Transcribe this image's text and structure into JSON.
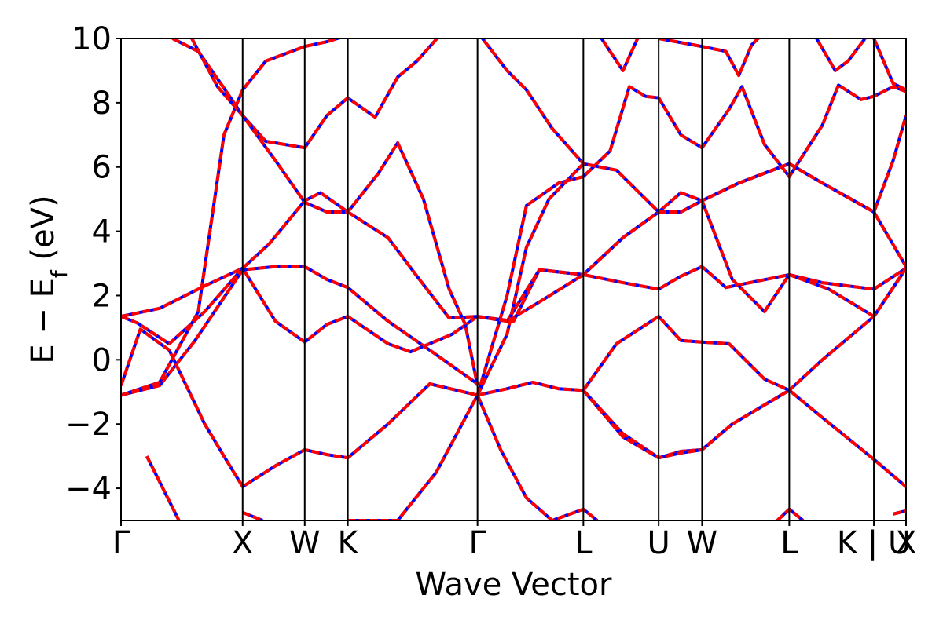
{
  "chart_data": {
    "type": "line",
    "xlabel": "Wave Vector",
    "ylabel": "E − E_f (eV)",
    "ylabel_main": "E − E",
    "ylabel_sub": "f",
    "ylabel_unit": " (eV)",
    "ylim": [
      -5,
      10
    ],
    "xlim": [
      0,
      24.4
    ],
    "y_ticks": [
      {
        "value": -4,
        "label": "−4"
      },
      {
        "value": -2,
        "label": "−2"
      },
      {
        "value": 0,
        "label": "0"
      },
      {
        "value": 2,
        "label": "2"
      },
      {
        "value": 4,
        "label": "4"
      },
      {
        "value": 6,
        "label": "6"
      },
      {
        "value": 8,
        "label": "8"
      },
      {
        "value": 10,
        "label": "10"
      }
    ],
    "kpoints": [
      {
        "label": "Γ",
        "x": 0.0
      },
      {
        "label": "X",
        "x": 3.78
      },
      {
        "label": "W",
        "x": 5.71
      },
      {
        "label": "K",
        "x": 7.05
      },
      {
        "label": "Γ",
        "x": 11.08
      },
      {
        "label": "L",
        "x": 14.37
      },
      {
        "label": "U",
        "x": 16.71
      },
      {
        "label": "W",
        "x": 18.06
      },
      {
        "label": "L",
        "x": 20.77
      },
      {
        "label": "K | U",
        "x": 23.4
      },
      {
        "label": "X",
        "x": 24.4
      }
    ],
    "series": [
      {
        "color": "#0000ff",
        "style": "solid",
        "bands": [
          [
            [
              0,
              -1.1
            ],
            [
              1.2,
              -0.8
            ],
            [
              2.3,
              0.6
            ],
            [
              3.78,
              2.8
            ],
            [
              4.8,
              2.9
            ],
            [
              5.71,
              2.9
            ],
            [
              6.4,
              2.5
            ],
            [
              7.05,
              2.25
            ],
            [
              8.3,
              1.2
            ],
            [
              9.6,
              0.3
            ],
            [
              11.08,
              -0.75
            ]
          ],
          [
            [
              0,
              -0.8
            ],
            [
              0.6,
              0.95
            ],
            [
              1.5,
              0.3
            ],
            [
              2.6,
              -2.0
            ],
            [
              3.2,
              -3.0
            ],
            [
              3.78,
              -3.95
            ],
            [
              4.8,
              -3.3
            ],
            [
              5.71,
              -2.8
            ],
            [
              6.4,
              -2.95
            ],
            [
              7.05,
              -3.05
            ],
            [
              8.3,
              -2.0
            ],
            [
              9.6,
              -0.75
            ],
            [
              11.08,
              -1.1
            ]
          ],
          [
            [
              0,
              1.35
            ],
            [
              0.5,
              1.15
            ],
            [
              1.5,
              0.5
            ],
            [
              2.6,
              1.5
            ],
            [
              3.78,
              2.85
            ],
            [
              4.8,
              1.2
            ],
            [
              5.71,
              0.55
            ],
            [
              6.4,
              1.1
            ],
            [
              7.05,
              1.35
            ],
            [
              8.3,
              0.5
            ],
            [
              9.0,
              0.25
            ],
            [
              10.3,
              0.8
            ],
            [
              11.08,
              1.35
            ]
          ],
          [
            [
              0,
              1.35
            ],
            [
              1.2,
              1.6
            ],
            [
              2.6,
              2.3
            ],
            [
              3.78,
              2.85
            ],
            [
              4.6,
              3.6
            ],
            [
              5.71,
              4.95
            ],
            [
              6.2,
              5.2
            ],
            [
              7.05,
              4.6
            ],
            [
              8.3,
              3.8
            ],
            [
              9.2,
              2.6
            ],
            [
              10.2,
              1.3
            ],
            [
              11.08,
              1.35
            ]
          ],
          [
            [
              0,
              -1.1
            ],
            [
              1.2,
              -0.7
            ],
            [
              2.4,
              1.5
            ],
            [
              3.2,
              7.0
            ],
            [
              3.78,
              8.4
            ],
            [
              4.5,
              9.3
            ],
            [
              5.71,
              9.75
            ],
            [
              6.4,
              9.9
            ],
            [
              7.05,
              10.1
            ]
          ],
          [
            [
              1.6,
              10.0
            ],
            [
              2.4,
              9.6
            ],
            [
              3.1,
              8.6
            ],
            [
              3.78,
              7.6
            ],
            [
              4.5,
              6.8
            ],
            [
              5.71,
              6.6
            ],
            [
              6.4,
              7.6
            ],
            [
              7.05,
              8.15
            ],
            [
              7.9,
              7.55
            ],
            [
              8.6,
              8.8
            ],
            [
              9.2,
              9.3
            ],
            [
              10.0,
              10.2
            ]
          ],
          [
            [
              2.2,
              10.0
            ],
            [
              3.0,
              8.5
            ],
            [
              3.78,
              7.6
            ],
            [
              4.8,
              6.2
            ],
            [
              5.71,
              4.9
            ],
            [
              6.4,
              4.6
            ],
            [
              7.05,
              4.6
            ],
            [
              8.0,
              5.8
            ],
            [
              8.6,
              6.75
            ],
            [
              9.4,
              5.0
            ],
            [
              10.2,
              2.2
            ],
            [
              10.7,
              1.1
            ],
            [
              11.08,
              -0.8
            ]
          ],
          [
            [
              11.08,
              -1.1
            ],
            [
              12.0,
              -0.9
            ],
            [
              12.8,
              -0.7
            ],
            [
              13.6,
              -0.9
            ],
            [
              14.37,
              -0.95
            ],
            [
              15.6,
              -2.3
            ],
            [
              16.71,
              -3.05
            ],
            [
              17.4,
              -2.85
            ],
            [
              18.06,
              -2.8
            ],
            [
              19.0,
              -2.0
            ],
            [
              20.77,
              -0.95
            ],
            [
              21.8,
              -1.8
            ],
            [
              23.4,
              -3.1
            ],
            [
              24.4,
              -3.95
            ]
          ],
          [
            [
              11.08,
              -1.1
            ],
            [
              11.8,
              -2.8
            ],
            [
              12.6,
              -4.3
            ],
            [
              13.4,
              -5.0
            ],
            [
              14.37,
              -4.65
            ],
            [
              14.8,
              -5.0
            ]
          ],
          [
            [
              11.08,
              -1.1
            ],
            [
              12.0,
              2.0
            ],
            [
              12.6,
              4.8
            ],
            [
              13.6,
              5.5
            ],
            [
              14.37,
              5.7
            ],
            [
              15.2,
              6.5
            ],
            [
              15.8,
              8.5
            ],
            [
              16.3,
              8.2
            ],
            [
              16.71,
              8.15
            ],
            [
              17.4,
              7.0
            ],
            [
              18.06,
              6.6
            ],
            [
              18.9,
              7.8
            ],
            [
              19.3,
              8.5
            ],
            [
              20.0,
              6.7
            ],
            [
              20.77,
              5.7
            ],
            [
              21.8,
              7.3
            ],
            [
              22.3,
              8.55
            ],
            [
              23.0,
              8.1
            ],
            [
              23.4,
              8.2
            ],
            [
              24.0,
              8.5
            ],
            [
              24.4,
              8.35
            ]
          ],
          [
            [
              11.08,
              1.35
            ],
            [
              12.0,
              1.2
            ],
            [
              13.0,
              1.8
            ],
            [
              14.37,
              2.65
            ],
            [
              15.6,
              2.4
            ],
            [
              16.71,
              2.2
            ],
            [
              17.4,
              2.6
            ],
            [
              18.06,
              2.9
            ],
            [
              18.8,
              2.25
            ],
            [
              20.77,
              2.65
            ],
            [
              21.8,
              2.4
            ],
            [
              23.4,
              2.2
            ],
            [
              24.4,
              2.85
            ]
          ],
          [
            [
              11.08,
              1.35
            ],
            [
              12.2,
              1.2
            ],
            [
              13.0,
              2.8
            ],
            [
              14.37,
              2.65
            ],
            [
              15.6,
              3.8
            ],
            [
              16.71,
              4.6
            ],
            [
              17.4,
              5.2
            ],
            [
              18.06,
              4.95
            ],
            [
              19.2,
              5.5
            ],
            [
              20.77,
              6.1
            ],
            [
              21.8,
              5.5
            ],
            [
              23.4,
              4.6
            ],
            [
              24.4,
              2.9
            ]
          ],
          [
            [
              11.08,
              1.35
            ],
            [
              12.0,
              1.2
            ],
            [
              13.0,
              2.8
            ],
            [
              14.37,
              2.65
            ],
            [
              15.6,
              3.8
            ],
            [
              16.71,
              4.6
            ],
            [
              17.4,
              4.6
            ],
            [
              18.06,
              4.95
            ],
            [
              19.2,
              5.5
            ],
            [
              20.77,
              6.1
            ],
            [
              21.8,
              5.5
            ],
            [
              23.4,
              4.6
            ],
            [
              24.0,
              6.2
            ],
            [
              24.4,
              7.6
            ]
          ],
          [
            [
              11.08,
              -1.1
            ],
            [
              12.0,
              0.8
            ],
            [
              12.6,
              3.5
            ],
            [
              13.3,
              5.0
            ],
            [
              14.37,
              6.1
            ],
            [
              15.4,
              5.9
            ],
            [
              16.71,
              4.6
            ],
            [
              17.4,
              4.6
            ],
            [
              18.06,
              4.95
            ],
            [
              19.0,
              2.5
            ],
            [
              20.0,
              1.5
            ],
            [
              20.77,
              2.65
            ],
            [
              22.0,
              2.2
            ],
            [
              23.4,
              1.35
            ],
            [
              24.4,
              2.85
            ]
          ],
          [
            [
              14.37,
              -0.95
            ],
            [
              15.4,
              0.5
            ],
            [
              16.71,
              1.35
            ],
            [
              17.4,
              0.6
            ],
            [
              18.06,
              0.55
            ],
            [
              18.9,
              0.5
            ],
            [
              20.0,
              -0.6
            ],
            [
              20.77,
              -0.95
            ],
            [
              21.8,
              0.0
            ],
            [
              23.4,
              1.35
            ],
            [
              24.4,
              2.85
            ]
          ],
          [
            [
              14.37,
              -0.95
            ],
            [
              15.6,
              -2.4
            ],
            [
              16.71,
              -3.05
            ],
            [
              17.4,
              -2.9
            ],
            [
              18.06,
              -2.8
            ],
            [
              19.0,
              -2.0
            ],
            [
              20.77,
              -0.95
            ]
          ],
          [
            [
              11.08,
              10.2
            ],
            [
              12.0,
              9.0
            ],
            [
              12.6,
              8.4
            ],
            [
              13.4,
              7.2
            ],
            [
              14.37,
              6.1
            ]
          ],
          [
            [
              14.8,
              10.2
            ],
            [
              15.2,
              9.6
            ],
            [
              15.6,
              9.0
            ],
            [
              16.1,
              10.1
            ]
          ],
          [
            [
              16.71,
              10.0
            ],
            [
              18.06,
              9.75
            ],
            [
              18.8,
              9.6
            ],
            [
              19.2,
              8.85
            ],
            [
              19.6,
              9.8
            ],
            [
              20.0,
              10.2
            ]
          ],
          [
            [
              21.5,
              10.2
            ],
            [
              22.2,
              9.0
            ],
            [
              22.6,
              9.3
            ],
            [
              23.2,
              10.1
            ]
          ],
          [
            [
              23.4,
              10.0
            ],
            [
              24.0,
              8.6
            ],
            [
              24.4,
              8.4
            ]
          ],
          [
            [
              3.78,
              -4.75
            ],
            [
              4.4,
              -5.0
            ]
          ],
          [
            [
              7.05,
              -5.0
            ],
            [
              8.6,
              -5.0
            ],
            [
              9.8,
              -3.5
            ],
            [
              11.08,
              -1.1
            ]
          ],
          [
            [
              20.4,
              -5.0
            ],
            [
              20.77,
              -4.65
            ],
            [
              21.2,
              -5.0
            ]
          ],
          [
            [
              24.0,
              -4.8
            ],
            [
              24.4,
              -4.7
            ]
          ],
          [
            [
              0.8,
              -3.0
            ],
            [
              1.8,
              -5.0
            ]
          ]
        ]
      }
    ]
  }
}
